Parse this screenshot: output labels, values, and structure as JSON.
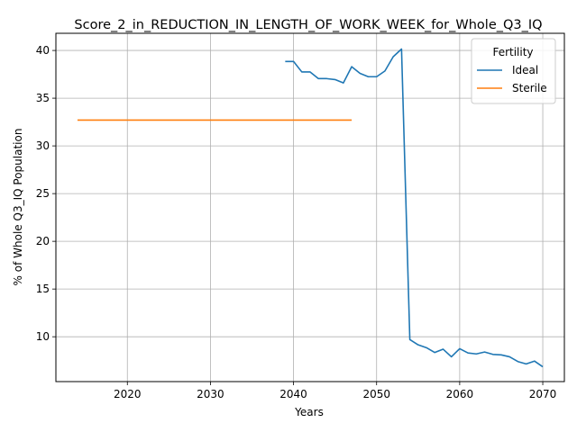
{
  "chart_data": {
    "type": "line",
    "title": "Score_2_in_REDUCTION_IN_LENGTH_OF_WORK_WEEK_for_Whole_Q3_IQ",
    "xlabel": "Years",
    "ylabel": "% of Whole Q3_IQ Population",
    "xlim": [
      2011.4,
      2072.6
    ],
    "ylim": [
      5.3,
      41.8
    ],
    "xticks": [
      2020,
      2030,
      2040,
      2050,
      2060,
      2070
    ],
    "yticks": [
      10,
      15,
      20,
      25,
      30,
      35,
      40
    ],
    "grid": true,
    "legend": {
      "title": "Fertility",
      "position": "top-right"
    },
    "series": [
      {
        "name": "Ideal",
        "color": "#1f77b4",
        "x": [
          2039,
          2040,
          2041,
          2042,
          2043,
          2044,
          2045,
          2046,
          2047,
          2048,
          2049,
          2050,
          2051,
          2052,
          2053,
          2054,
          2055,
          2056,
          2057,
          2058,
          2059,
          2060,
          2061,
          2062,
          2063,
          2064,
          2065,
          2066,
          2067,
          2068,
          2069,
          2070
        ],
        "y": [
          38.85,
          38.85,
          37.75,
          37.75,
          37.05,
          37.05,
          36.95,
          36.6,
          38.3,
          37.6,
          37.25,
          37.25,
          37.85,
          39.35,
          40.15,
          9.7,
          9.15,
          8.85,
          8.35,
          8.7,
          7.9,
          8.75,
          8.3,
          8.2,
          8.4,
          8.15,
          8.1,
          7.9,
          7.4,
          7.15,
          7.45,
          6.85
        ]
      },
      {
        "name": "Sterile",
        "color": "#ff7f0e",
        "x": [
          2014,
          2047
        ],
        "y": [
          32.7,
          32.7
        ]
      }
    ]
  }
}
